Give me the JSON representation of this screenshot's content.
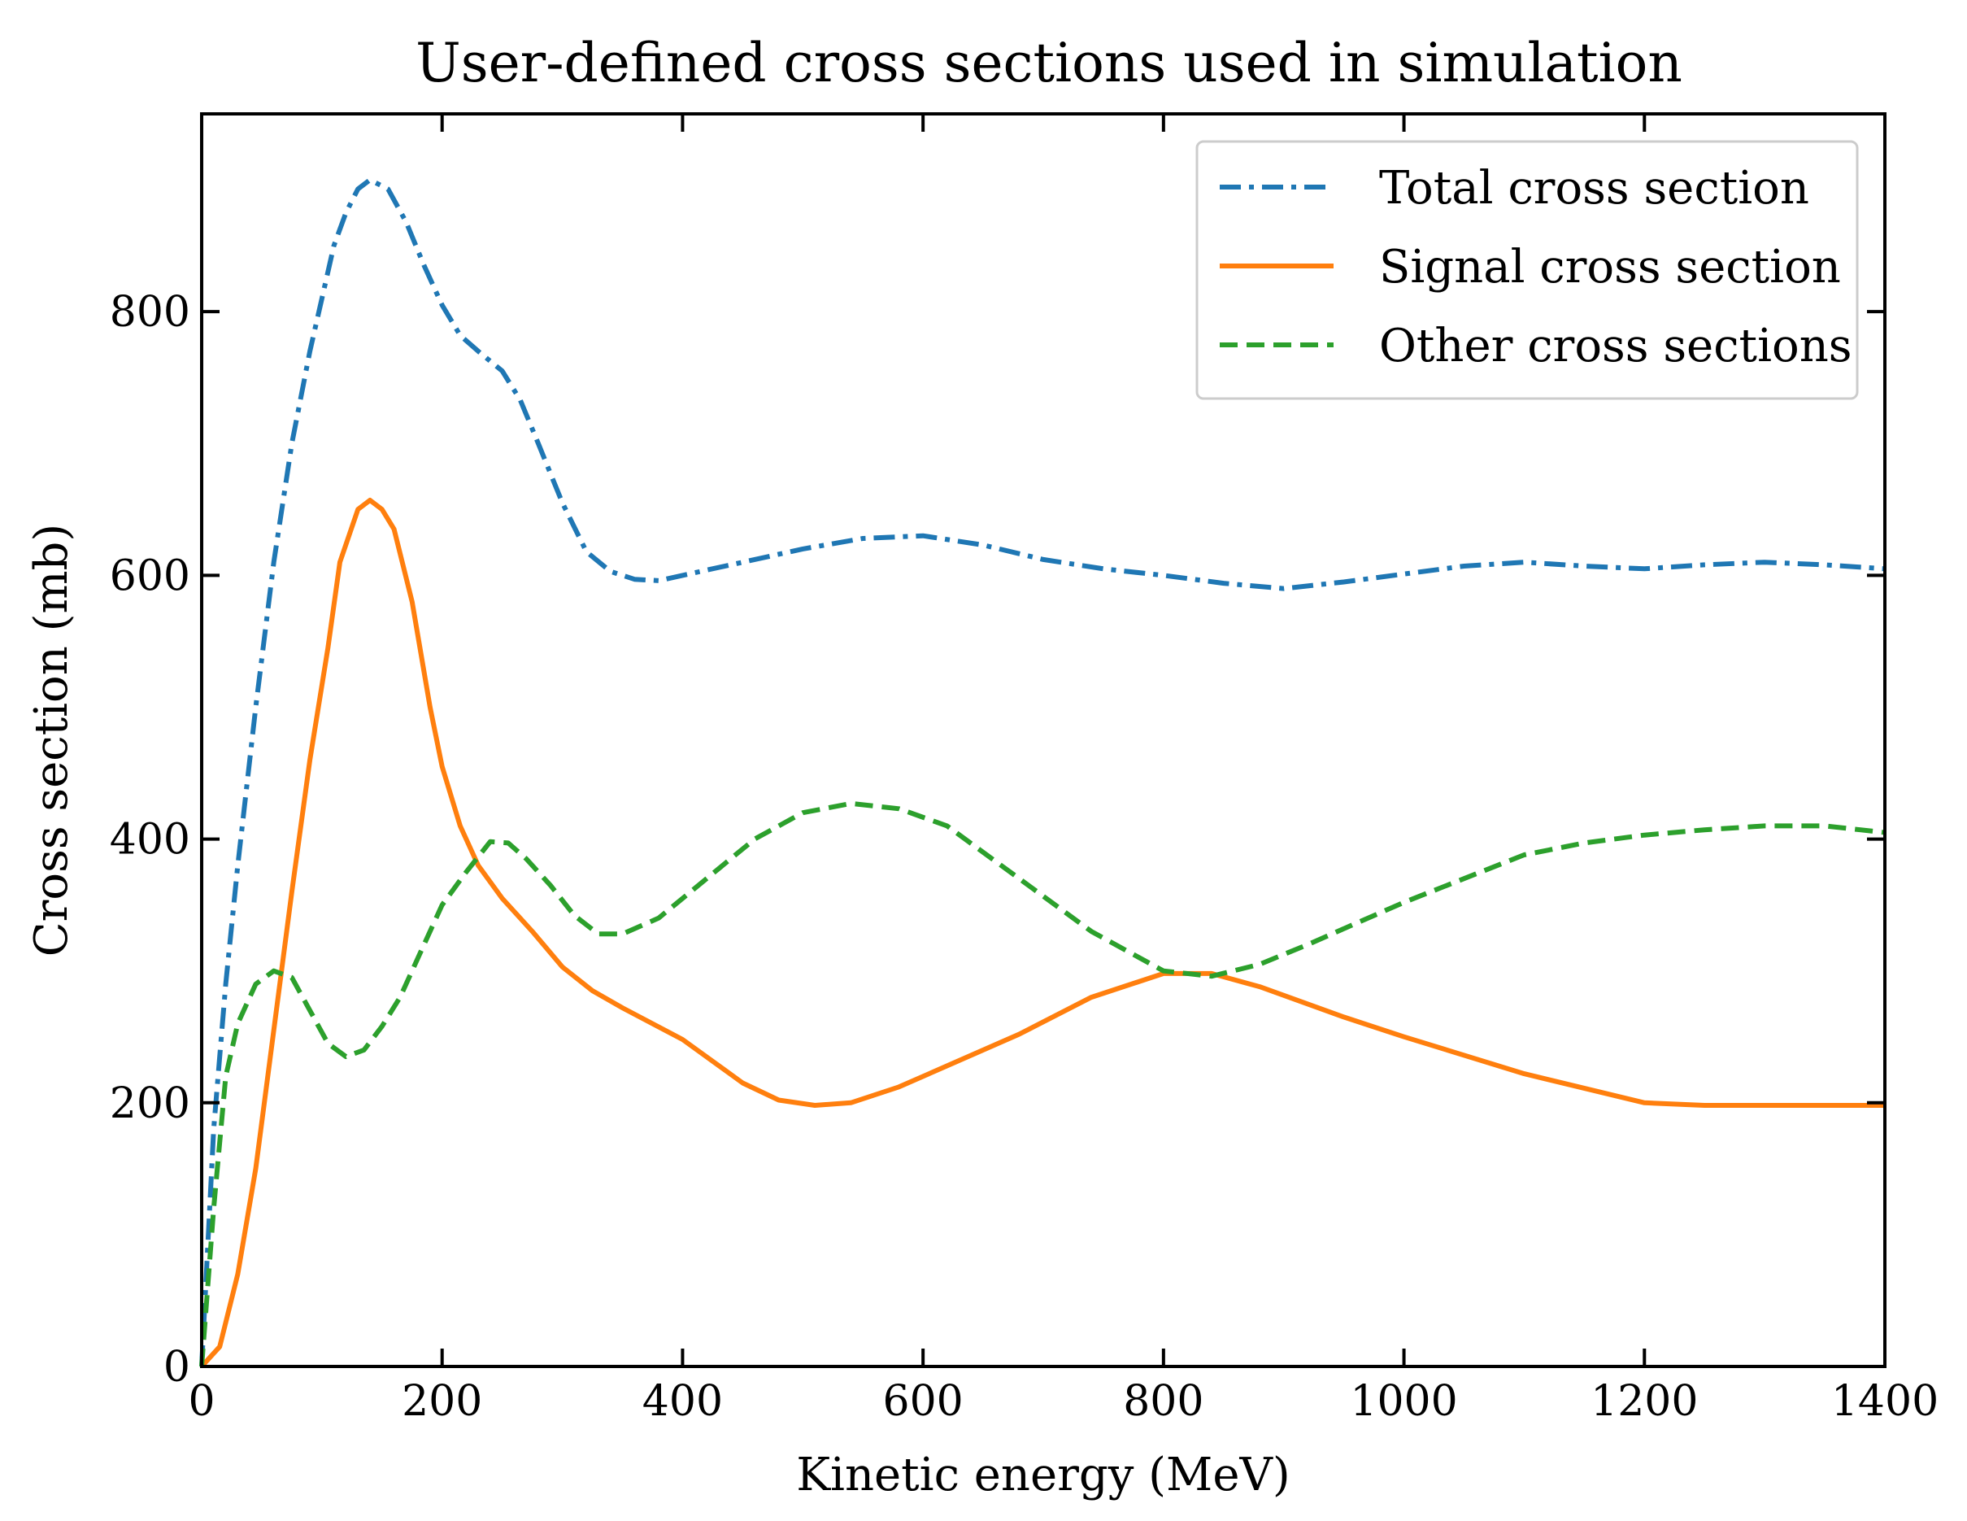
{
  "chart_data": {
    "type": "line",
    "title": "User-defined cross sections used in simulation",
    "xlabel": "Kinetic energy (MeV)",
    "ylabel": "Cross section (mb)",
    "xlim": [
      0,
      1400
    ],
    "ylim": [
      0,
      950
    ],
    "xticks": [
      0,
      200,
      400,
      600,
      800,
      1000,
      1200,
      1400
    ],
    "yticks": [
      0,
      200,
      400,
      600,
      800
    ],
    "grid": false,
    "legend_position": "top-right",
    "series": [
      {
        "name": "Total cross section",
        "color": "#1f77b4",
        "style": "dashdot",
        "x": [
          0,
          10,
          20,
          30,
          45,
          60,
          75,
          90,
          100,
          110,
          120,
          130,
          140,
          155,
          170,
          185,
          200,
          215,
          230,
          250,
          265,
          280,
          300,
          320,
          340,
          360,
          380,
          400,
          450,
          500,
          550,
          600,
          650,
          700,
          750,
          800,
          850,
          900,
          950,
          1000,
          1050,
          1100,
          1150,
          1200,
          1250,
          1300,
          1350,
          1400
        ],
        "y": [
          0,
          180,
          290,
          380,
          500,
          610,
          700,
          770,
          810,
          850,
          875,
          893,
          900,
          893,
          868,
          835,
          805,
          782,
          770,
          755,
          733,
          700,
          655,
          618,
          603,
          597,
          596,
          600,
          610,
          620,
          628,
          630,
          623,
          612,
          605,
          600,
          594,
          590,
          595,
          601,
          607,
          610,
          607,
          605,
          608,
          610,
          608,
          605
        ]
      },
      {
        "name": "Signal cross section",
        "color": "#ff7f0e",
        "style": "solid",
        "x": [
          0,
          15,
          30,
          45,
          60,
          75,
          90,
          105,
          115,
          130,
          140,
          150,
          160,
          175,
          190,
          200,
          215,
          230,
          250,
          275,
          300,
          325,
          350,
          400,
          450,
          480,
          510,
          540,
          580,
          620,
          680,
          740,
          800,
          840,
          880,
          950,
          1000,
          1100,
          1200,
          1250,
          1300,
          1350,
          1400
        ],
        "y": [
          0,
          15,
          70,
          150,
          255,
          360,
          460,
          545,
          610,
          650,
          657,
          650,
          635,
          580,
          500,
          455,
          410,
          380,
          355,
          330,
          303,
          285,
          272,
          248,
          215,
          202,
          198,
          200,
          212,
          228,
          252,
          280,
          298,
          298,
          288,
          265,
          250,
          222,
          200,
          198,
          198,
          198,
          198
        ]
      },
      {
        "name": "Other cross sections",
        "color": "#2ca02c",
        "style": "dashed",
        "x": [
          0,
          10,
          20,
          30,
          45,
          60,
          75,
          90,
          105,
          120,
          135,
          150,
          165,
          180,
          200,
          220,
          240,
          255,
          270,
          290,
          310,
          330,
          350,
          380,
          420,
          460,
          500,
          540,
          580,
          620,
          680,
          740,
          800,
          840,
          880,
          920,
          960,
          1000,
          1050,
          1100,
          1150,
          1200,
          1250,
          1300,
          1350,
          1400
        ],
        "y": [
          0,
          120,
          220,
          260,
          290,
          300,
          295,
          270,
          245,
          235,
          240,
          258,
          280,
          310,
          350,
          375,
          398,
          397,
          385,
          365,
          342,
          328,
          328,
          340,
          370,
          400,
          420,
          427,
          423,
          410,
          370,
          330,
          300,
          296,
          305,
          320,
          336,
          352,
          370,
          388,
          397,
          403,
          407,
          410,
          410,
          405
        ]
      }
    ]
  }
}
